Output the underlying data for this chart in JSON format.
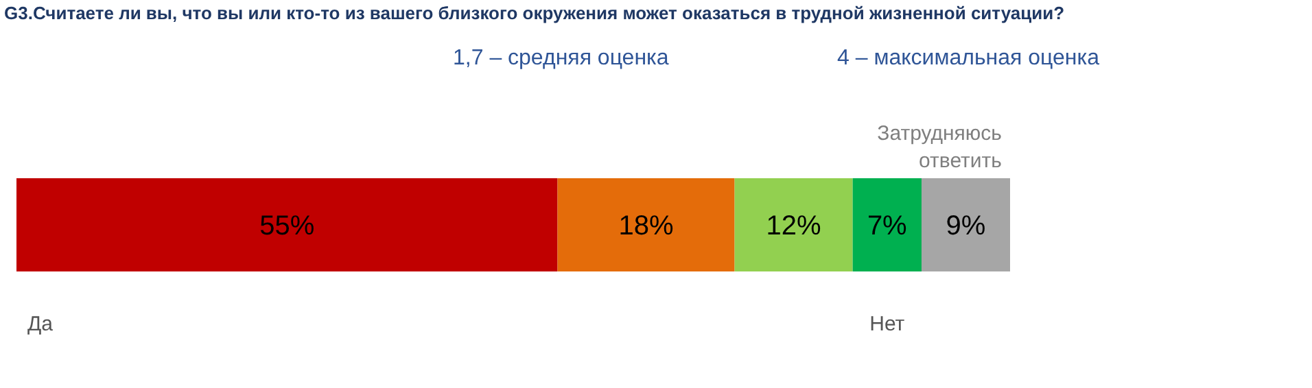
{
  "chart_data": {
    "type": "bar",
    "orientation": "horizontal",
    "stacked": true,
    "title": "G3.Считаете ли вы, что вы или кто-то из вашего близкого окружения может оказаться в трудной жизненной ситуации?",
    "categories": [
      null
    ],
    "series": [
      {
        "color": "#c00000",
        "values": [
          55
        ],
        "value_labels": [
          "55%"
        ]
      },
      {
        "color": "#e46c0a",
        "values": [
          18
        ],
        "value_labels": [
          "18%"
        ]
      },
      {
        "color": "#92d050",
        "values": [
          12
        ],
        "value_labels": [
          "12%"
        ]
      },
      {
        "color": "#00b050",
        "values": [
          7
        ],
        "value_labels": [
          "7%"
        ]
      },
      {
        "color": "#a6a6a6",
        "values": [
          9
        ],
        "value_labels": [
          "9%"
        ]
      }
    ],
    "annotations": [
      "1,7 – средняя оценка",
      "4 – максимальная оценка",
      "Да",
      "Нет",
      "Затрудняюсь ответить"
    ]
  }
}
